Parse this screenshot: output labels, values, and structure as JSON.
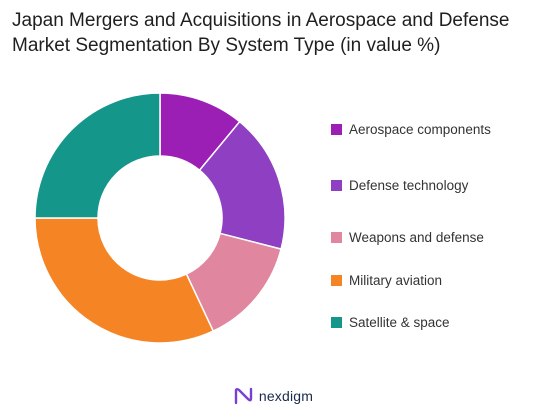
{
  "chart_data": {
    "type": "pie",
    "variant": "donut",
    "title": "Japan Mergers and Acquisitions in Aerospace and Defense Market Segmentation By System Type (in value %)",
    "categories": [
      "Aerospace components",
      "Defense technology",
      "Weapons and defense",
      "Military aviation",
      "Satellite & space"
    ],
    "values": [
      11,
      18,
      14,
      32,
      25
    ],
    "colors": [
      "#9b1fb5",
      "#8e3fc2",
      "#e0879f",
      "#f58425",
      "#14968a"
    ],
    "legend": "right"
  },
  "brand": {
    "name": "nexdigm",
    "logo_icon": "nexdigm-logo-icon",
    "color": "#1b2a4a"
  }
}
